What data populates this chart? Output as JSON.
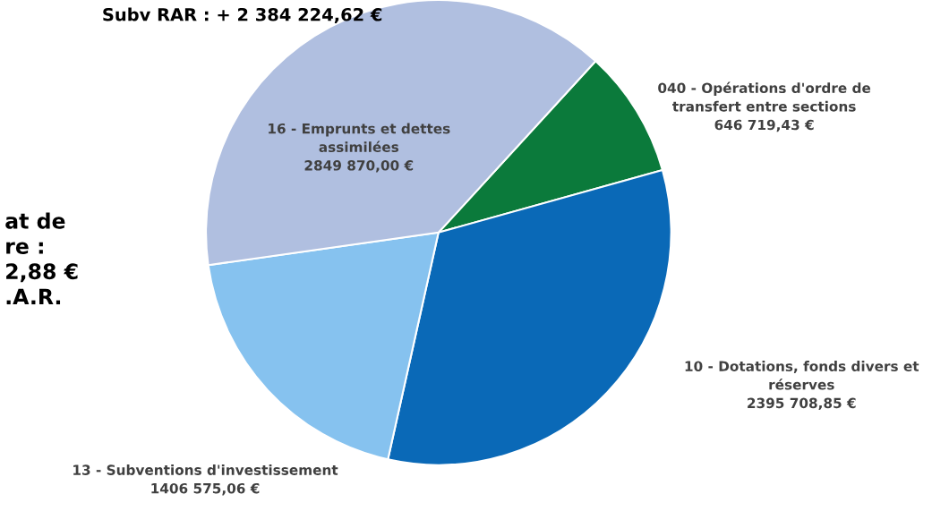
{
  "chart_data": {
    "type": "pie",
    "categories": [
      "040 - Opérations d'ordre de\ntransfert entre sections",
      "10 - Dotations, fonds divers et\nréserves",
      "13 - Subventions d'investissement",
      "16 - Emprunts et dettes\nassimilées"
    ],
    "values": [
      646719.43,
      2395708.85,
      1406575.06,
      2849870.0
    ],
    "value_labels": [
      "646 719,43 €",
      "2395 708,85 €",
      "1406 575,06 €",
      "2849 870,00 €"
    ],
    "colors": [
      "#0b7a3b",
      "#0a69b7",
      "#86c2ef",
      "#b0bfe0"
    ],
    "annotations": [
      "Subv RAR : + 2 384 224,62 €",
      "at de\nre :\n2,88 €\n.A.R."
    ],
    "legend": false
  }
}
